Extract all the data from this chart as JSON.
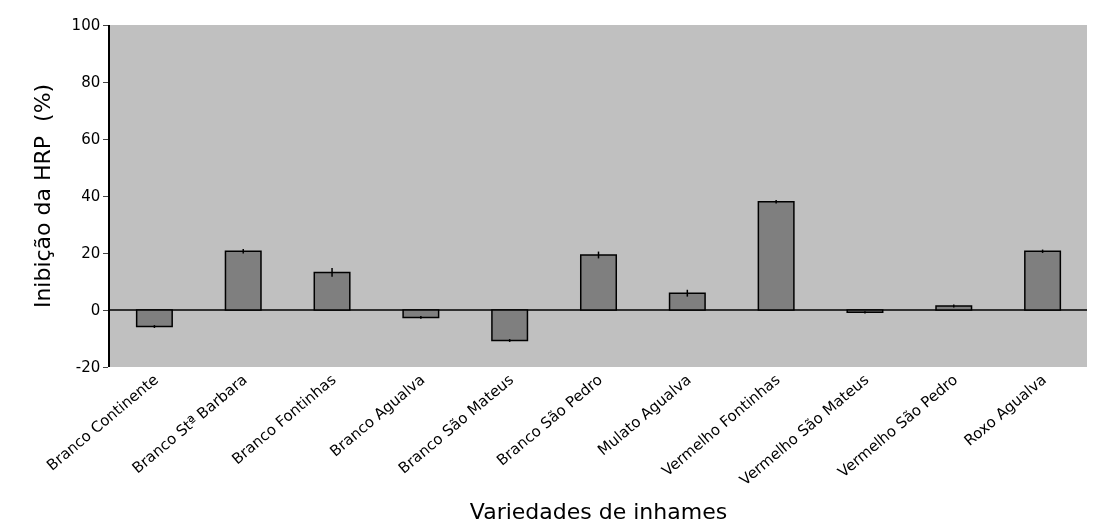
{
  "chart_data": {
    "type": "bar",
    "xlabel": "Variedades de inhames",
    "ylabel": "Inibição da HRP  (%)",
    "categories": [
      "Branco Continente",
      "Branco Stª Barbara",
      "Branco Fontinhas",
      "Branco Agualva",
      "Branco São Mateus",
      "Branco São Pedro",
      "Mulato Agualva",
      "Vermelho Fontinhas",
      "Vermelho São Mateus",
      "Vermelho São Pedro",
      "Roxo Agualva"
    ],
    "values": [
      -5.8,
      20.6,
      13.2,
      -2.6,
      -10.7,
      19.3,
      5.9,
      38,
      -0.8,
      1.4,
      20.6
    ],
    "errors": [
      0.5,
      0.8,
      1.5,
      0.5,
      0.5,
      1.2,
      1.2,
      0.6,
      0.4,
      0.5,
      0.6
    ],
    "color": "#7f7f7f",
    "ylim": [
      -20,
      100
    ],
    "yticks": [
      -20,
      0,
      20,
      40,
      60,
      80,
      100
    ],
    "ref_lines": [
      {
        "axis": "y",
        "value": 0,
        "color": "#000000"
      }
    ],
    "grid": false,
    "legend": false
  }
}
